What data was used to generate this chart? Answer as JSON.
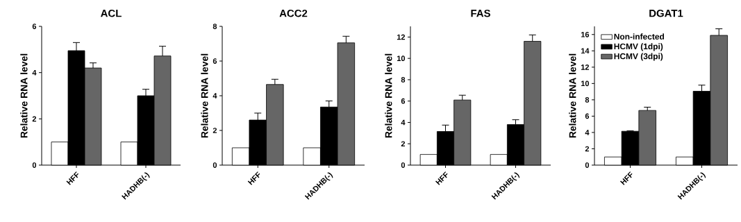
{
  "chart_data": [
    {
      "type": "bar",
      "title": "ACL",
      "ylabel": "Relative RNA level",
      "categories": [
        "HFF",
        "HADHB(-)"
      ],
      "ylim": [
        0,
        6
      ],
      "yticks": [
        0,
        2,
        4,
        6
      ],
      "legend": false,
      "series": [
        {
          "color": "#ffffff",
          "values": [
            1,
            1
          ]
        },
        {
          "color": "#000000",
          "values": [
            4.95,
            3.0
          ],
          "errors": [
            0.35,
            0.28
          ]
        },
        {
          "color": "#666666",
          "values": [
            4.2,
            4.72
          ],
          "errors": [
            0.22,
            0.42
          ]
        }
      ]
    },
    {
      "type": "bar",
      "title": "ACC2",
      "ylabel": "Relative RNA level",
      "categories": [
        "HFF",
        "HADHB(-)"
      ],
      "ylim": [
        0,
        8
      ],
      "yticks": [
        0,
        2,
        4,
        6,
        8
      ],
      "legend": false,
      "series": [
        {
          "color": "#ffffff",
          "values": [
            1,
            1
          ]
        },
        {
          "color": "#000000",
          "values": [
            2.6,
            3.35
          ],
          "errors": [
            0.4,
            0.35
          ]
        },
        {
          "color": "#666666",
          "values": [
            4.65,
            7.05
          ],
          "errors": [
            0.3,
            0.38
          ]
        }
      ]
    },
    {
      "type": "bar",
      "title": "FAS",
      "ylabel": "Relative RNA level",
      "categories": [
        "HFF",
        "HADHB(-)"
      ],
      "ylim": [
        0,
        13
      ],
      "yticks": [
        0,
        2,
        4,
        6,
        8,
        10,
        12
      ],
      "legend": false,
      "series": [
        {
          "color": "#ffffff",
          "values": [
            1,
            1
          ]
        },
        {
          "color": "#000000",
          "values": [
            3.15,
            3.8
          ],
          "errors": [
            0.6,
            0.45
          ]
        },
        {
          "color": "#666666",
          "values": [
            6.1,
            11.6
          ],
          "errors": [
            0.45,
            0.6
          ]
        }
      ]
    },
    {
      "type": "bar",
      "title": "DGAT1",
      "ylabel": "Relative RNA level",
      "categories": [
        "HFF",
        "HADHB(-)"
      ],
      "ylim": [
        0,
        17
      ],
      "yticks": [
        0,
        2,
        4,
        6,
        8,
        10,
        12,
        14,
        16
      ],
      "legend": "top left",
      "series": [
        {
          "name": "Non-infected",
          "color": "#ffffff",
          "values": [
            1,
            1
          ]
        },
        {
          "name": "HCMV (1dpi)",
          "color": "#000000",
          "values": [
            4.15,
            9.05
          ],
          "errors": [
            0.05,
            0.75
          ]
        },
        {
          "name": "HCMV (3dpi)",
          "color": "#666666",
          "values": [
            6.7,
            15.9
          ],
          "errors": [
            0.4,
            0.8
          ]
        }
      ]
    }
  ]
}
